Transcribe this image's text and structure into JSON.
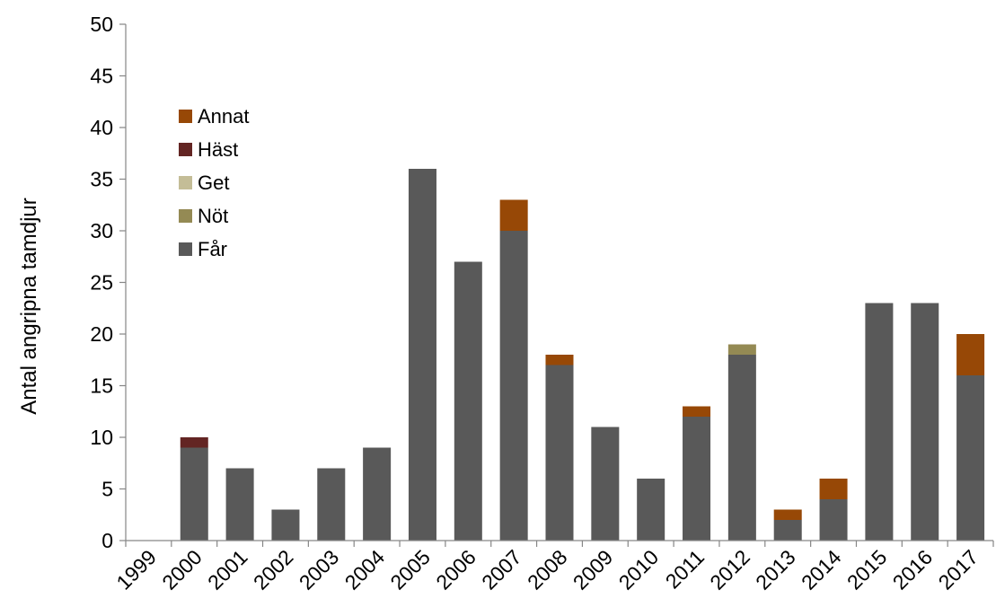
{
  "chart_data": {
    "type": "bar",
    "stacked": true,
    "title": "",
    "xlabel": "",
    "ylabel": "Antal angripna tamdjur",
    "ylim": [
      0,
      50
    ],
    "yticks": [
      0,
      5,
      10,
      15,
      20,
      25,
      30,
      35,
      40,
      45,
      50
    ],
    "grid": false,
    "legend_position": "top-left",
    "categories": [
      "1999",
      "2000",
      "2001",
      "2002",
      "2003",
      "2004",
      "2005",
      "2006",
      "2007",
      "2008",
      "2009",
      "2010",
      "2011",
      "2012",
      "2013",
      "2014",
      "2015",
      "2016",
      "2017"
    ],
    "series": [
      {
        "name": "Får",
        "color": "#595959",
        "values": [
          0,
          9,
          7,
          3,
          7,
          9,
          36,
          27,
          30,
          17,
          11,
          6,
          12,
          18,
          2,
          4,
          23,
          23,
          16
        ]
      },
      {
        "name": "Nöt",
        "color": "#948A54",
        "values": [
          0,
          0,
          0,
          0,
          0,
          0,
          0,
          0,
          0,
          0,
          0,
          0,
          0,
          1,
          0,
          0,
          0,
          0,
          0
        ]
      },
      {
        "name": "Get",
        "color": "#C4BD97",
        "values": [
          0,
          0,
          0,
          0,
          0,
          0,
          0,
          0,
          0,
          0,
          0,
          0,
          0,
          0,
          0,
          0,
          0,
          0,
          0
        ]
      },
      {
        "name": "Häst",
        "color": "#632523",
        "values": [
          0,
          1,
          0,
          0,
          0,
          0,
          0,
          0,
          0,
          0,
          0,
          0,
          0,
          0,
          0,
          0,
          0,
          0,
          0
        ]
      },
      {
        "name": "Annat",
        "color": "#974806",
        "values": [
          0,
          0,
          0,
          0,
          0,
          0,
          0,
          0,
          3,
          1,
          0,
          0,
          1,
          0,
          1,
          2,
          0,
          0,
          4
        ]
      }
    ],
    "legend_order": [
      "Annat",
      "Häst",
      "Get",
      "Nöt",
      "Får"
    ],
    "axis_color": "#868686"
  }
}
